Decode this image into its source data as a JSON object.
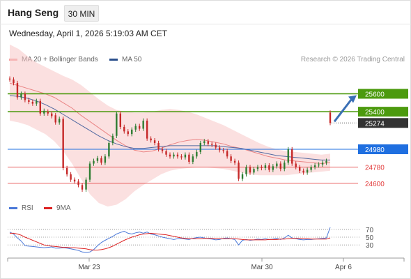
{
  "header": {
    "title": "Hang Seng",
    "timeframe": "30 MIN",
    "datetime": "Wednesday, April 1, 2026 5:19:03 AM CET",
    "credit": "Research © 2026 Trading Central"
  },
  "legend": {
    "ma20": "MA 20 + Bollinger Bands",
    "ma50": "MA 50",
    "rsi": "RSI",
    "ma9": "9MA"
  },
  "colors": {
    "bullish": "#2e7d32",
    "bearish": "#c62828",
    "resistance": "#4c9a0e",
    "pivot": "#1f6fe0",
    "support": "#e23a3a",
    "last": "#333333",
    "bollinger": "#f8c6c6",
    "ma20": "#e87a7a",
    "ma50": "#3e5c9a",
    "rsi": "#4a78d8",
    "rsi_ma": "#dd2222",
    "arrow": "#3a6fb5"
  },
  "chart_data": [
    {
      "type": "candlestick",
      "title": "Hang Seng",
      "xlabel": "",
      "ylabel": "",
      "ylim": [
        24450,
        25900
      ],
      "x_ticks": [
        "Mar 23",
        "Mar 30",
        "Apr 6"
      ],
      "levels": [
        {
          "label": "25600",
          "value": 25600,
          "kind": "resistance"
        },
        {
          "label": "25400",
          "value": 25400,
          "kind": "resistance"
        },
        {
          "label": "25274",
          "value": 25274,
          "kind": "last"
        },
        {
          "label": "24980",
          "value": 24980,
          "kind": "pivot"
        },
        {
          "label": "24780",
          "value": 24780,
          "kind": "support"
        },
        {
          "label": "24600",
          "value": 24600,
          "kind": "support"
        }
      ],
      "forecast": {
        "from": 25274,
        "to": 25600
      },
      "series": [
        {
          "name": "MA 20 + Bollinger Bands",
          "values": [
            25720,
            25690,
            25660,
            25630,
            25600,
            25560,
            25500,
            25440,
            25360,
            25290,
            25220,
            25150,
            25080,
            25020,
            24970,
            24950,
            24960,
            24990,
            25030,
            25060,
            25080,
            25090,
            25080,
            25060,
            25040,
            25010,
            24990,
            24960,
            24930,
            24900,
            24880,
            24860,
            24850,
            24840,
            24830,
            24820,
            24830
          ]
        },
        {
          "name": "MA 50",
          "values": [
            25580,
            25570,
            25550,
            25520,
            25480,
            25430,
            25370,
            25310,
            25250,
            25190,
            25130,
            25080,
            25040,
            25010,
            24990,
            24990,
            25000,
            25010,
            25020,
            25020,
            25020,
            25020,
            25020,
            25020,
            25010,
            25000,
            24990,
            24970,
            24950,
            24930,
            24910,
            24900,
            24890,
            24880,
            24870,
            24860,
            24860
          ]
        }
      ],
      "bollinger_upper": [
        26150,
        26100,
        26020,
        25950,
        25900,
        25850,
        25800,
        25760,
        25700,
        25620,
        25540,
        25470,
        25420,
        25400,
        25390,
        25390,
        25400,
        25420,
        25430,
        25420,
        25400,
        25370,
        25330,
        25290,
        25250,
        25200,
        25150,
        25100,
        25050,
        25010,
        24980,
        24960,
        24950,
        24940,
        24930,
        24920,
        24930
      ],
      "bollinger_lower": [
        25300,
        25280,
        25250,
        25200,
        25150,
        25070,
        24960,
        24820,
        24650,
        24480,
        24380,
        24340,
        24360,
        24420,
        24510,
        24580,
        24640,
        24700,
        24740,
        24760,
        24770,
        24780,
        24780,
        24770,
        24760,
        24740,
        24720,
        24700,
        24690,
        24690,
        24690,
        24690,
        24700,
        24710,
        24720,
        24730,
        24740
      ],
      "candles": [
        [
          25770,
          25760
        ],
        [
          25760,
          25720
        ],
        [
          25720,
          25560
        ],
        [
          25560,
          25600
        ],
        [
          25600,
          25530
        ],
        [
          25530,
          25510
        ],
        [
          25510,
          25490
        ],
        [
          25490,
          25520
        ],
        [
          25520,
          25380
        ],
        [
          25380,
          25410
        ],
        [
          25400,
          25380
        ],
        [
          25380,
          25350
        ],
        [
          25360,
          25280
        ],
        [
          25280,
          25320
        ],
        [
          25320,
          24770
        ],
        [
          24770,
          24700
        ],
        [
          24700,
          24640
        ],
        [
          24640,
          24620
        ],
        [
          24620,
          24580
        ],
        [
          24580,
          24530
        ],
        [
          24530,
          24640
        ],
        [
          24640,
          24820
        ],
        [
          24820,
          24850
        ],
        [
          24850,
          24880
        ],
        [
          24880,
          24830
        ],
        [
          24830,
          24900
        ],
        [
          24900,
          25050
        ],
        [
          25050,
          25130
        ],
        [
          25130,
          25380
        ],
        [
          25380,
          25230
        ],
        [
          25230,
          25180
        ],
        [
          25180,
          25150
        ],
        [
          25150,
          25200
        ],
        [
          25200,
          25240
        ],
        [
          25240,
          25210
        ],
        [
          25210,
          25300
        ],
        [
          25300,
          25100
        ],
        [
          25100,
          25080
        ],
        [
          25080,
          25050
        ],
        [
          25050,
          24980
        ],
        [
          24980,
          24960
        ],
        [
          24960,
          24920
        ],
        [
          24920,
          24900
        ],
        [
          24900,
          24920
        ],
        [
          24920,
          24900
        ],
        [
          24900,
          24890
        ],
        [
          24890,
          24920
        ],
        [
          24920,
          24840
        ],
        [
          24840,
          24900
        ],
        [
          24900,
          24950
        ],
        [
          24950,
          25050
        ],
        [
          25050,
          25070
        ],
        [
          25070,
          25040
        ],
        [
          25040,
          25030
        ],
        [
          25030,
          25000
        ],
        [
          25000,
          24970
        ],
        [
          24970,
          24960
        ],
        [
          24960,
          24900
        ],
        [
          24900,
          24850
        ],
        [
          24850,
          24830
        ],
        [
          24830,
          24650
        ],
        [
          24650,
          24700
        ],
        [
          24700,
          24780
        ],
        [
          24780,
          24720
        ],
        [
          24720,
          24760
        ],
        [
          24760,
          24780
        ],
        [
          24780,
          24770
        ],
        [
          24770,
          24800
        ],
        [
          24800,
          24750
        ],
        [
          24750,
          24790
        ],
        [
          24790,
          24820
        ],
        [
          24820,
          24760
        ],
        [
          24760,
          24830
        ],
        [
          24830,
          24980
        ],
        [
          24980,
          24820
        ],
        [
          24820,
          24780
        ],
        [
          24780,
          24740
        ],
        [
          24740,
          24720
        ],
        [
          24720,
          24750
        ],
        [
          24750,
          24780
        ],
        [
          24780,
          24800
        ],
        [
          24800,
          24810
        ],
        [
          24810,
          24830
        ],
        [
          24830,
          24850
        ],
        [
          25390,
          25274
        ]
      ]
    },
    {
      "type": "line",
      "title": "RSI",
      "xlabel": "",
      "ylabel": "",
      "ylim": [
        0,
        100
      ],
      "y_ticks": [
        70,
        50,
        30
      ],
      "series": [
        {
          "name": "RSI",
          "values": [
            63,
            58,
            48,
            40,
            28,
            27,
            26,
            25,
            24,
            23,
            24,
            25,
            22,
            22,
            23,
            22,
            20,
            18,
            16,
            12,
            11,
            12,
            18,
            28,
            36,
            42,
            47,
            52,
            58,
            62,
            65,
            60,
            58,
            61,
            63,
            60,
            63,
            58,
            56,
            53,
            50,
            48,
            46,
            44,
            46,
            47,
            45,
            44,
            47,
            49,
            50,
            48,
            46,
            45,
            43,
            44,
            47,
            48,
            46,
            44,
            30,
            42,
            44,
            42,
            43,
            45,
            44,
            46,
            44,
            45,
            47,
            44,
            48,
            55,
            48,
            46,
            44,
            43,
            44,
            44,
            45,
            46,
            47,
            48,
            75
          ]
        },
        {
          "name": "9MA",
          "values": [
            60,
            60,
            58,
            55,
            50,
            46,
            42,
            38,
            34,
            30,
            28,
            27,
            26,
            25,
            24,
            24,
            23,
            23,
            22,
            21,
            20,
            18,
            17,
            17,
            18,
            20,
            23,
            27,
            32,
            37,
            42,
            46,
            50,
            53,
            56,
            58,
            59,
            60,
            59,
            58,
            57,
            56,
            54,
            52,
            50,
            48,
            47,
            46,
            46,
            46,
            46,
            47,
            47,
            47,
            46,
            46,
            46,
            46,
            46,
            46,
            45,
            44,
            43,
            43,
            43,
            43,
            43,
            43,
            44,
            44,
            44,
            45,
            45,
            46,
            47,
            47,
            47,
            46,
            46,
            45,
            45,
            45,
            45,
            45,
            48
          ]
        }
      ]
    }
  ]
}
